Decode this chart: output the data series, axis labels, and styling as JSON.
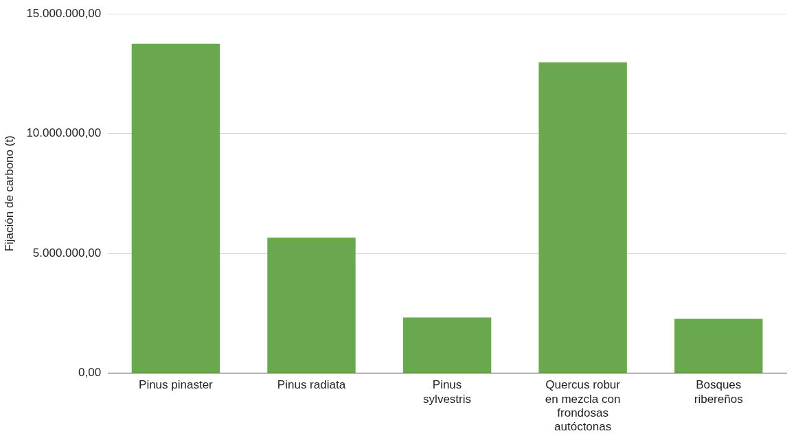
{
  "chart_data": {
    "type": "bar",
    "ylabel": "Fijación de carbono (t)",
    "categories": [
      "Pinus pinaster",
      "Pinus radiata",
      "Pinus sylvestris",
      "Quercus robur en mezcla con frondosas autóctonas",
      "Bosques ribereños"
    ],
    "values": [
      13750000,
      5650000,
      2320000,
      12980000,
      2260000
    ],
    "color": "#6aa84f",
    "ylim": [
      0,
      15000000
    ],
    "yticks": [
      {
        "value": 0,
        "label": "0,00"
      },
      {
        "value": 5000000,
        "label": "5.000.000,00"
      },
      {
        "value": 10000000,
        "label": "10.000.000,00"
      },
      {
        "value": 15000000,
        "label": "15.000.000,00"
      }
    ],
    "grid": "y",
    "legend": false
  }
}
